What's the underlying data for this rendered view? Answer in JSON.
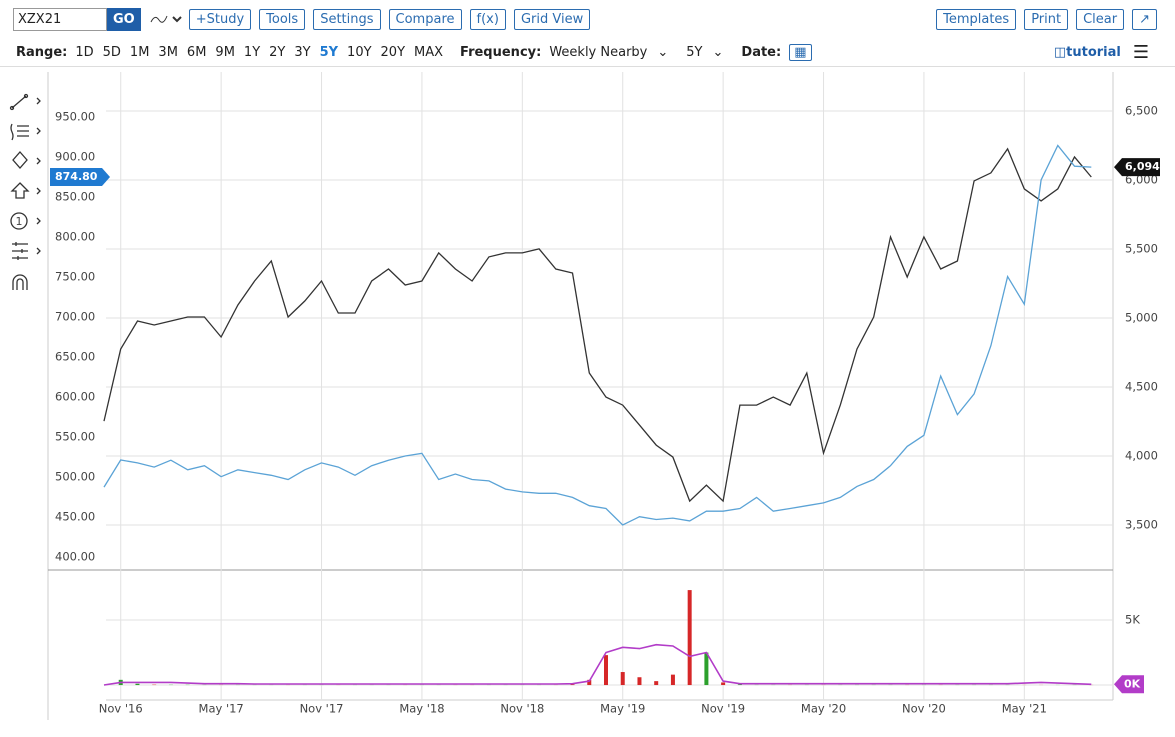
{
  "toolbar": {
    "symbol": "XZX21",
    "go": "GO",
    "buttons": [
      "+Study",
      "Tools",
      "Settings",
      "Compare",
      "f(x)",
      "Grid View"
    ],
    "right_buttons": [
      "Templates",
      "Print",
      "Clear"
    ]
  },
  "range_bar": {
    "range_label": "Range:",
    "ranges": [
      "1D",
      "5D",
      "1M",
      "3M",
      "6M",
      "9M",
      "1Y",
      "2Y",
      "3Y",
      "5Y",
      "10Y",
      "20Y",
      "MAX"
    ],
    "active_range": "5Y",
    "frequency_label": "Frequency:",
    "frequency": "Weekly Nearby",
    "period": "5Y",
    "date_label": "Date:",
    "tutorial": "tutorial"
  },
  "chart_data": [
    {
      "type": "line",
      "x": [
        "2016-10",
        "2016-11",
        "2016-12",
        "2017-01",
        "2017-02",
        "2017-03",
        "2017-04",
        "2017-05",
        "2017-06",
        "2017-07",
        "2017-08",
        "2017-09",
        "2017-10",
        "2017-11",
        "2017-12",
        "2018-01",
        "2018-02",
        "2018-03",
        "2018-04",
        "2018-05",
        "2018-06",
        "2018-07",
        "2018-08",
        "2018-09",
        "2018-10",
        "2018-11",
        "2018-12",
        "2019-01",
        "2019-02",
        "2019-03",
        "2019-04",
        "2019-05",
        "2019-06",
        "2019-07",
        "2019-08",
        "2019-09",
        "2019-10",
        "2019-11",
        "2019-12",
        "2020-01",
        "2020-02",
        "2020-03",
        "2020-04",
        "2020-05",
        "2020-06",
        "2020-07",
        "2020-08",
        "2020-09",
        "2020-10",
        "2020-11",
        "2020-12",
        "2021-01",
        "2021-02",
        "2021-03",
        "2021-04",
        "2021-05",
        "2021-06",
        "2021-07",
        "2021-08",
        "2021-09"
      ],
      "xlim": [
        "2016-10",
        "2021-10"
      ],
      "xticks": [
        {
          "value": "2016-11",
          "label": "Nov '16"
        },
        {
          "value": "2017-05",
          "label": "May '17"
        },
        {
          "value": "2017-11",
          "label": "Nov '17"
        },
        {
          "value": "2018-05",
          "label": "May '18"
        },
        {
          "value": "2018-11",
          "label": "Nov '18"
        },
        {
          "value": "2019-05",
          "label": "May '19"
        },
        {
          "value": "2019-11",
          "label": "Nov '19"
        },
        {
          "value": "2020-05",
          "label": "May '20"
        },
        {
          "value": "2020-11",
          "label": "Nov '20"
        },
        {
          "value": "2021-05",
          "label": "May '21"
        }
      ],
      "ylim": [
        384,
        1006
      ],
      "yticks": [
        {
          "value": 400,
          "label": "400.00"
        },
        {
          "value": 450,
          "label": "450.00"
        },
        {
          "value": 500,
          "label": "500.00"
        },
        {
          "value": 550,
          "label": "550.00"
        },
        {
          "value": 600,
          "label": "600.00"
        },
        {
          "value": 650,
          "label": "650.00"
        },
        {
          "value": 700,
          "label": "700.00"
        },
        {
          "value": 750,
          "label": "750.00"
        },
        {
          "value": 800,
          "label": "800.00"
        },
        {
          "value": 850,
          "label": "850.00"
        },
        {
          "value": 900,
          "label": "900.00"
        },
        {
          "value": 950,
          "label": "950.00"
        }
      ],
      "y2lim": [
        3174,
        6783
      ],
      "y2ticks": [
        {
          "value": 3500,
          "label": "3,500"
        },
        {
          "value": 4000,
          "label": "4,000"
        },
        {
          "value": 4500,
          "label": "4,500"
        },
        {
          "value": 5000,
          "label": "5,000"
        },
        {
          "value": 5500,
          "label": "5,500"
        },
        {
          "value": 6000,
          "label": "6,000"
        },
        {
          "value": 6500,
          "label": "6,500"
        }
      ],
      "grid": true,
      "series": [
        {
          "color": "#333333",
          "last_label": "874.80",
          "values": [
            570,
            660,
            695,
            690,
            695,
            700,
            700,
            675,
            715,
            745,
            770,
            700,
            720,
            745,
            705,
            705,
            745,
            760,
            740,
            745,
            780,
            760,
            745,
            775,
            780,
            780,
            785,
            760,
            755,
            630,
            600,
            590,
            565,
            540,
            525,
            470,
            490,
            470,
            590,
            590,
            600,
            590,
            630,
            530,
            590,
            660,
            700,
            800,
            750,
            800,
            760,
            770,
            870,
            880,
            910,
            860,
            845,
            860,
            900,
            874.8
          ]
        },
        {
          "color": "#5ba3d6",
          "axis": "y2",
          "last_label": "6,094",
          "values": [
            3775,
            3971,
            3950,
            3920,
            3970,
            3900,
            3930,
            3850,
            3900,
            3880,
            3860,
            3830,
            3900,
            3950,
            3920,
            3860,
            3930,
            3970,
            4000,
            4020,
            3830,
            3870,
            3830,
            3820,
            3760,
            3740,
            3730,
            3730,
            3700,
            3640,
            3620,
            3500,
            3560,
            3540,
            3550,
            3530,
            3600,
            3600,
            3620,
            3700,
            3600,
            3620,
            3640,
            3660,
            3700,
            3780,
            3830,
            3930,
            4070,
            4150,
            4580,
            4300,
            4450,
            4800,
            5300,
            5100,
            6000,
            6250,
            6100,
            6094
          ]
        }
      ]
    },
    {
      "type": "bar",
      "ylim": [
        -1150,
        8460
      ],
      "yticks": [
        {
          "value": 5000,
          "label": "5K"
        }
      ],
      "up_color": "#2ca02c",
      "down_color": "#d62728",
      "values": [
        0,
        400,
        100,
        30,
        20,
        20,
        10,
        10,
        10,
        10,
        10,
        10,
        10,
        10,
        10,
        10,
        10,
        10,
        10,
        10,
        10,
        10,
        10,
        10,
        10,
        10,
        10,
        10,
        50,
        400,
        2300,
        1000,
        600,
        300,
        800,
        7300,
        2500,
        200,
        50,
        10,
        10,
        10,
        10,
        10,
        10,
        10,
        10,
        10,
        10,
        10,
        10,
        10,
        10,
        10,
        10,
        10,
        10,
        10,
        10,
        10
      ],
      "line": {
        "color": "#b23cc8",
        "last_label": "0K",
        "values": [
          0,
          200,
          200,
          200,
          200,
          150,
          100,
          100,
          100,
          80,
          80,
          80,
          80,
          80,
          80,
          80,
          80,
          80,
          80,
          80,
          80,
          80,
          80,
          80,
          80,
          80,
          80,
          80,
          100,
          300,
          2500,
          2900,
          2800,
          3100,
          3000,
          2200,
          2500,
          300,
          100,
          100,
          100,
          100,
          100,
          100,
          100,
          100,
          100,
          100,
          100,
          100,
          100,
          100,
          100,
          100,
          100,
          150,
          200,
          150,
          100,
          60
        ]
      }
    }
  ]
}
